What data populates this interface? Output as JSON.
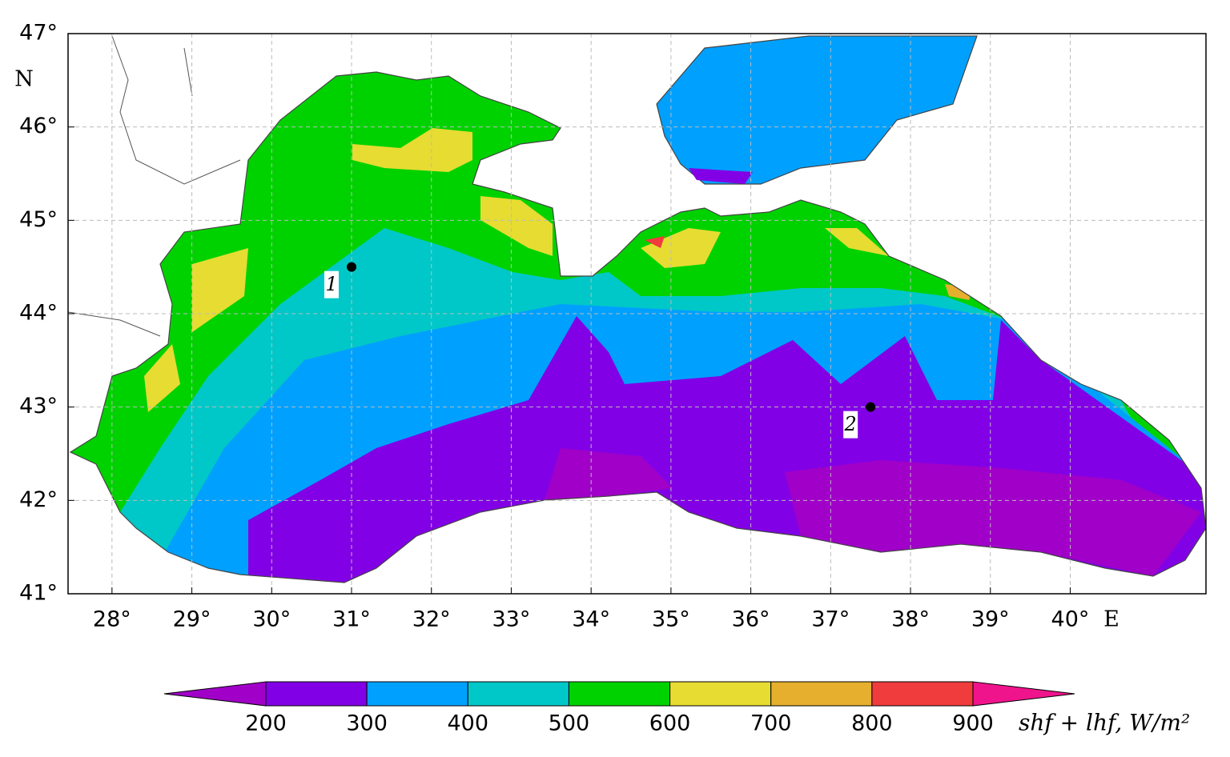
{
  "map": {
    "lonlim": [
      27.45,
      41.7
    ],
    "latlim": [
      41,
      47
    ],
    "grid": true,
    "lon_ticks": [
      {
        "value": 28,
        "label": "28°"
      },
      {
        "value": 29,
        "label": "29°"
      },
      {
        "value": 30,
        "label": "30°"
      },
      {
        "value": 31,
        "label": "31°"
      },
      {
        "value": 32,
        "label": "32°"
      },
      {
        "value": 33,
        "label": "33°"
      },
      {
        "value": 34,
        "label": "34°"
      },
      {
        "value": 35,
        "label": "35°"
      },
      {
        "value": 36,
        "label": "36°"
      },
      {
        "value": 37,
        "label": "37°"
      },
      {
        "value": 38,
        "label": "38°"
      },
      {
        "value": 39,
        "label": "39°"
      },
      {
        "value": 40,
        "label": "40°"
      }
    ],
    "lat_ticks": [
      {
        "value": 41,
        "label": "41°"
      },
      {
        "value": 42,
        "label": "42°"
      },
      {
        "value": 43,
        "label": "43°"
      },
      {
        "value": 44,
        "label": "44°"
      },
      {
        "value": 45,
        "label": "45°"
      },
      {
        "value": 46,
        "label": "46°"
      },
      {
        "value": 47,
        "label": "47°"
      }
    ],
    "lon_unit": "E",
    "lat_unit": "N",
    "stations": [
      {
        "label": "1",
        "lon": 31,
        "lat": 44.5
      },
      {
        "label": "2",
        "lon": 37.5,
        "lat": 43
      }
    ]
  },
  "colorbar": {
    "levels": [
      200,
      300,
      400,
      500,
      600,
      700,
      800,
      900
    ],
    "colors": [
      "#a000c8",
      "#8200e6",
      "#00a0ff",
      "#00c8c8",
      "#00d200",
      "#e6dc32",
      "#e6af2d",
      "#f03c3c",
      "#f0148c"
    ],
    "label": "shf + lhf, W/m²"
  }
}
